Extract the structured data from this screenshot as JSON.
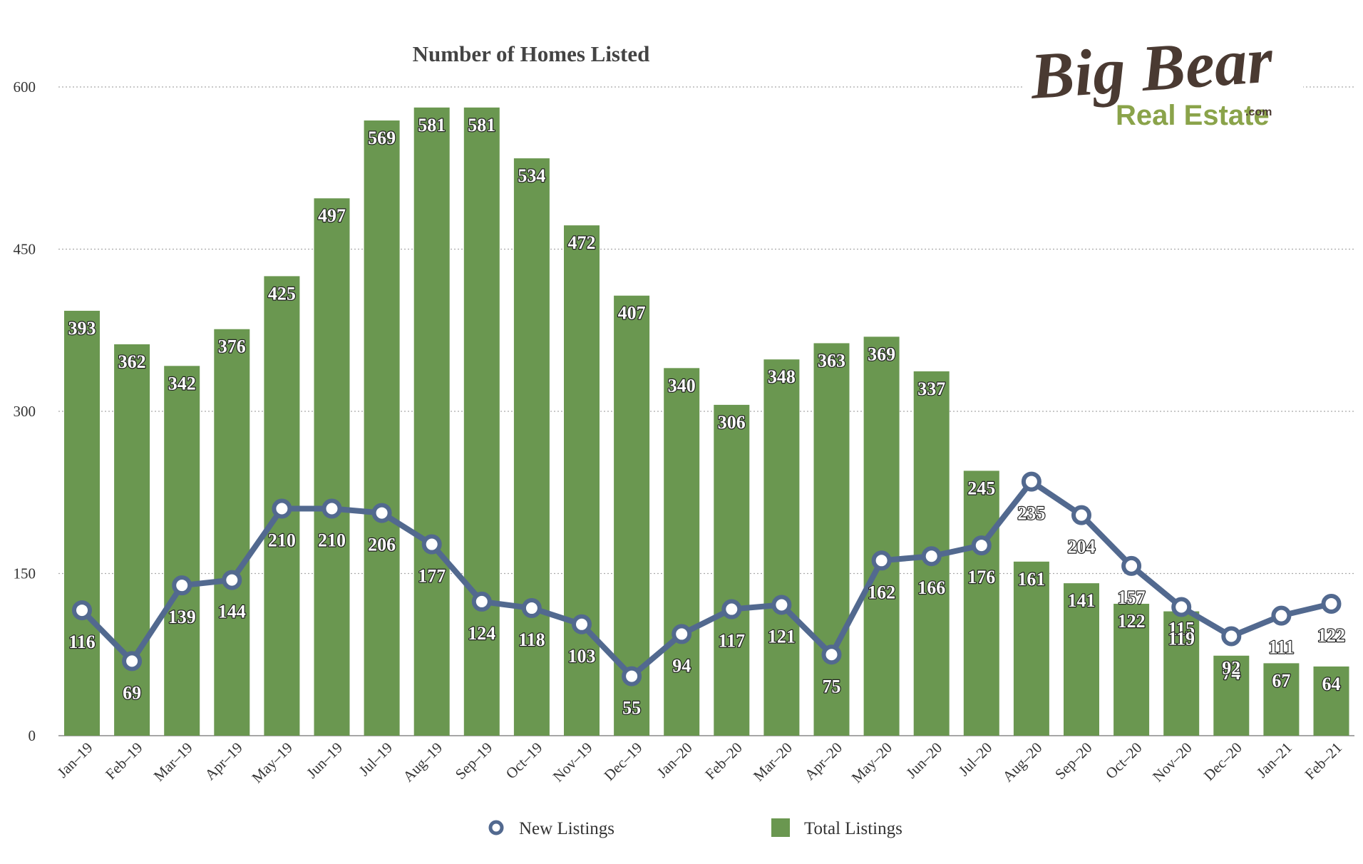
{
  "chart_data": {
    "type": "bar+line",
    "title": "Number of Homes Listed",
    "categories": [
      "Jan-19",
      "Feb-19",
      "Mar-19",
      "Apr-19",
      "May-19",
      "Jun-19",
      "Jul-19",
      "Aug-19",
      "Sep-19",
      "Oct-19",
      "Nov-19",
      "Dec-19",
      "Jan-20",
      "Feb-20",
      "Mar-20",
      "Apr-20",
      "May-20",
      "Jun-20",
      "Jul-20",
      "Aug-20",
      "Sep-20",
      "Oct-20",
      "Nov-20",
      "Dec-20",
      "Jan-21",
      "Feb-21"
    ],
    "series": [
      {
        "name": "Total Listings",
        "type": "bar",
        "color": "#6a9750",
        "values": [
          393,
          362,
          342,
          376,
          425,
          497,
          569,
          581,
          581,
          534,
          472,
          407,
          340,
          306,
          348,
          363,
          369,
          337,
          245,
          161,
          141,
          122,
          115,
          74,
          67,
          64
        ]
      },
      {
        "name": "New Listings",
        "type": "line",
        "color": "#52698f",
        "values": [
          116,
          69,
          139,
          144,
          210,
          210,
          206,
          177,
          124,
          118,
          103,
          55,
          94,
          117,
          121,
          75,
          162,
          166,
          176,
          235,
          204,
          157,
          119,
          92,
          111,
          122
        ]
      }
    ],
    "yticks": [
      0,
      150,
      300,
      450,
      600
    ],
    "ylim": [
      0,
      600
    ],
    "grid": true,
    "legend_position": "bottom-center"
  },
  "logo": {
    "script": "Big Bear",
    "sub": "Real Estate",
    ".com": ".com"
  }
}
